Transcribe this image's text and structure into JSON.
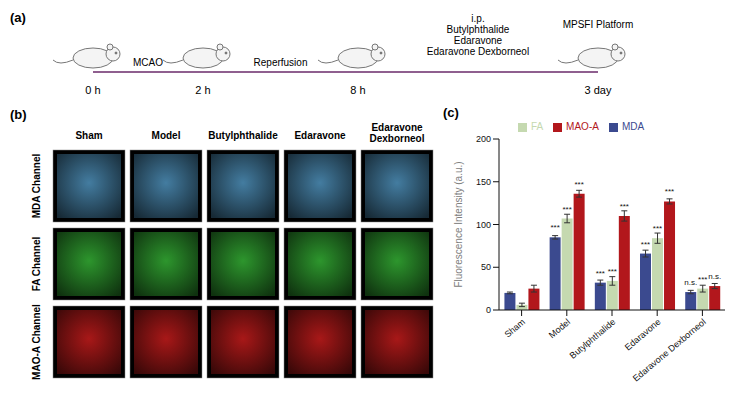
{
  "panel_a": {
    "label": "(a)",
    "timepoints": [
      "0 h",
      "2 h",
      "8 h",
      "3 day"
    ],
    "stages": [
      "MCAO",
      "Reperfusion"
    ],
    "treatment": {
      "route": "i.p.",
      "drugs": [
        "Butylphthalide",
        "Edaravone",
        "Edaravone Dexborneol"
      ]
    },
    "endpoint": "MPSFI Platform"
  },
  "panel_b": {
    "label": "(b)",
    "columns": [
      "Sham",
      "Model",
      "Butylphthalide",
      "Edaravone",
      "Edaravone Dexborneol"
    ],
    "rows": [
      "MDA Channel",
      "FA Channel",
      "MAO-A Channel"
    ]
  },
  "chart_data": {
    "type": "bar",
    "panel_label": "(c)",
    "y_label": "Fluorescence Intensity (a.u.)",
    "categories": [
      "Sham",
      "Model",
      "Butylphthalide",
      "Edaravone",
      "Edaravone Dexborneol"
    ],
    "series": [
      {
        "name": "MDA",
        "color": "#3b4a8f",
        "values": [
          20,
          85,
          32,
          66,
          21
        ],
        "errors": [
          1,
          2,
          3,
          4,
          2
        ],
        "annotations": [
          null,
          "***",
          "***",
          "***",
          "n.s."
        ]
      },
      {
        "name": "FA",
        "color": "#c5d9b0",
        "values": [
          6,
          107,
          34,
          84,
          25
        ],
        "errors": [
          2,
          5,
          5,
          6,
          4
        ],
        "annotations": [
          null,
          "***",
          "***",
          "***",
          "***"
        ]
      },
      {
        "name": "MAO-A",
        "color": "#b2171c",
        "values": [
          25,
          136,
          110,
          127,
          28
        ],
        "errors": [
          4,
          4,
          6,
          3,
          3
        ],
        "annotations": [
          null,
          "***",
          "***",
          "***",
          "n.s."
        ]
      }
    ],
    "ylim": [
      0,
      200
    ],
    "yticks": [
      0,
      50,
      100,
      150,
      200
    ],
    "grid": false,
    "legend": "top"
  }
}
